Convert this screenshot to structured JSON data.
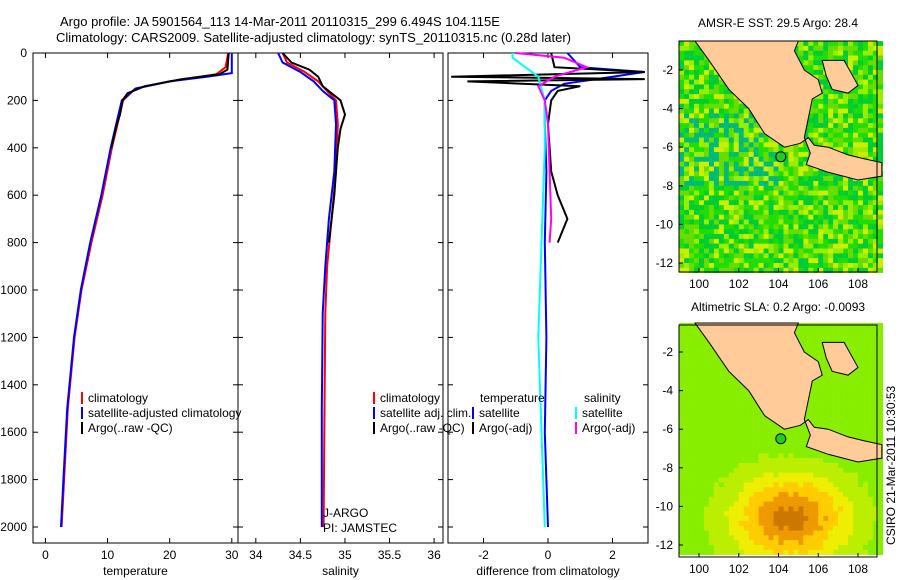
{
  "title_line1": "Argo profile: JA 5901564_113 14-Mar-2011 20110315_299 6.494S 104.115E",
  "title_line2": "Climatology: CARS2009. Satellite-adjusted climatology: synTS_20110315.nc (0.28d later)",
  "credit": "CSIRO 21-Mar-2011 10:30:53",
  "chart_data": [
    {
      "type": "line",
      "xlabel": "temperature",
      "xlim": [
        -2,
        31
      ],
      "ylim": [
        2050,
        0
      ],
      "xticks": [
        "0",
        "10",
        "20",
        "30"
      ],
      "xtick_values": [
        0,
        10,
        20,
        30
      ],
      "yticks": [
        "0",
        "200",
        "400",
        "600",
        "800",
        "1000",
        "1200",
        "1400",
        "1600",
        "1800",
        "2000"
      ],
      "legend": [
        "climatology",
        "satellite-adjusted climatology",
        "Argo(..raw -QC)"
      ],
      "series": [
        {
          "name": "climatology",
          "color": "#ff0000",
          "pressure": [
            0,
            60,
            90,
            120,
            150,
            200,
            300,
            400,
            600,
            800,
            1000,
            1200,
            1500,
            1800,
            2000
          ],
          "values": [
            29.4,
            29.0,
            27.5,
            20,
            14.5,
            12.5,
            11.6,
            10.7,
            9.2,
            7.4,
            5.8,
            4.7,
            3.6,
            3.0,
            2.6
          ]
        },
        {
          "name": "satellite-adjusted climatology",
          "color": "#0000ff",
          "pressure": [
            0,
            85,
            100,
            120,
            150,
            200,
            300,
            400,
            600,
            800,
            1000,
            1200,
            1500,
            1800,
            2000
          ],
          "values": [
            30.0,
            30.0,
            26,
            20,
            14.5,
            12.3,
            11.4,
            10.5,
            9.0,
            7.2,
            5.7,
            4.6,
            3.5,
            2.9,
            2.5
          ]
        },
        {
          "name": "Argo(..raw -QC)",
          "color": "#000000",
          "pressure": [
            0,
            70,
            90,
            110,
            140,
            170,
            200,
            260,
            300,
            400
          ],
          "values": [
            29.5,
            29.3,
            28,
            22,
            16,
            13.2,
            12.4,
            12,
            11.5,
            10.6
          ]
        }
      ]
    },
    {
      "type": "line",
      "xlabel": "salinity",
      "xlim": [
        33.8,
        36.1
      ],
      "ylim": [
        2050,
        0
      ],
      "xticks": [
        "34",
        "34.5",
        "35",
        "35.5",
        "36"
      ],
      "xtick_values": [
        34,
        34.5,
        35,
        35.5,
        36
      ],
      "legend": [
        "climatology",
        "satellite adj. clim.",
        "Argo(..raw -QC)"
      ],
      "annotation": [
        "J-ARGO",
        "PI: JAMSTEC"
      ],
      "series": [
        {
          "name": "climatology",
          "color": "#ff0000",
          "pressure": [
            0,
            40,
            80,
            120,
            160,
            200,
            300,
            500,
            700,
            900,
            1100,
            1500,
            2000
          ],
          "values": [
            34.3,
            34.35,
            34.55,
            34.7,
            34.8,
            34.9,
            34.92,
            34.9,
            34.85,
            34.8,
            34.78,
            34.77,
            34.76
          ]
        },
        {
          "name": "satellite adj. clim.",
          "color": "#0000ff",
          "pressure": [
            0,
            40,
            80,
            120,
            160,
            200,
            300,
            500,
            700,
            900,
            1100,
            1500,
            2000
          ],
          "values": [
            34.25,
            34.3,
            34.5,
            34.65,
            34.75,
            34.88,
            34.9,
            34.88,
            34.82,
            34.78,
            34.75,
            34.74,
            34.74
          ]
        },
        {
          "name": "Argo(..raw -QC)",
          "color": "#000000",
          "pressure": [
            0,
            40,
            70,
            100,
            140,
            170,
            200,
            260,
            320,
            400,
            500,
            600,
            700,
            800
          ],
          "values": [
            34.3,
            34.4,
            34.6,
            34.7,
            34.75,
            34.85,
            34.95,
            35.0,
            34.95,
            34.92,
            34.9,
            34.88,
            34.85,
            34.82
          ]
        }
      ]
    },
    {
      "type": "line",
      "xlabel": "difference from climatology",
      "xlim": [
        -3.1,
        3.1
      ],
      "ylim": [
        2050,
        0
      ],
      "xticks": [
        "-2",
        "0",
        "2"
      ],
      "xtick_values": [
        -2,
        0,
        2
      ],
      "legend_temperature": {
        "heading": "temperature",
        "items": [
          "satellite",
          "Argo(-adj)"
        ]
      },
      "legend_salinity": {
        "heading": "salinity",
        "items": [
          "satellite",
          "Argo(-adj)"
        ]
      },
      "series": [
        {
          "name": "temperature satellite",
          "color": "#0000ff",
          "pressure": [
            0,
            60,
            80,
            100,
            130,
            160,
            200,
            300,
            500,
            800,
            1200,
            1600,
            2000
          ],
          "values": [
            0.6,
            1.0,
            3.0,
            2.0,
            0.5,
            0.1,
            -0.1,
            -0.1,
            -0.05,
            -0.1,
            -0.05,
            -0.1,
            0
          ]
        },
        {
          "name": "temperature Argo(-adj)",
          "color": "#000000",
          "pressure": [
            0,
            60,
            80,
            100,
            110,
            120,
            140,
            160,
            200,
            300,
            500,
            600,
            700,
            800
          ],
          "values": [
            0.1,
            0.2,
            3.0,
            -3.0,
            3.0,
            -2.5,
            1.0,
            0.3,
            0.1,
            0.0,
            0.1,
            0.3,
            0.6,
            0.3
          ]
        },
        {
          "name": "salinity satellite",
          "color": "#00ffff",
          "pressure": [
            0,
            20,
            100,
            200,
            400,
            800,
            1200,
            1600,
            2000
          ],
          "values": [
            -1.1,
            -1.1,
            -0.3,
            -0.1,
            -0.1,
            -0.2,
            -0.3,
            -0.2,
            -0.1
          ]
        },
        {
          "name": "salinity Argo(-adj)",
          "color": "#ff00ff",
          "pressure": [
            0,
            20,
            60,
            100,
            140,
            200,
            300,
            500,
            700,
            800
          ],
          "values": [
            -1.0,
            0.5,
            1.2,
            0.2,
            -0.3,
            -0.1,
            0.0,
            0.05,
            0.1,
            0.05
          ]
        }
      ]
    },
    {
      "type": "heatmap",
      "title": "AMSR-E SST: 29.5 Argo: 28.4",
      "sat_value": 29.5,
      "argo_value": 28.4,
      "xticks": [
        "100",
        "102",
        "104",
        "106",
        "108"
      ],
      "xtick_values": [
        100,
        102,
        104,
        106,
        108
      ],
      "yticks": [
        "-2",
        "-4",
        "-6",
        "-8",
        "-10",
        "-12"
      ],
      "ytick_values": [
        -2,
        -4,
        -6,
        -8,
        -10,
        -12
      ],
      "marker": {
        "lon": 104.115,
        "lat": -6.494
      }
    },
    {
      "type": "heatmap",
      "title": "Altimetric SLA: 0.2 Argo: -0.0093",
      "sat_value": 0.2,
      "argo_value": -0.0093,
      "xticks": [
        "100",
        "102",
        "104",
        "106",
        "108"
      ],
      "xtick_values": [
        100,
        102,
        104,
        106,
        108
      ],
      "yticks": [
        "-2",
        "-4",
        "-6",
        "-8",
        "-10",
        "-12"
      ],
      "ytick_values": [
        -2,
        -4,
        -6,
        -8,
        -10,
        -12
      ],
      "marker": {
        "lon": 104.115,
        "lat": -6.494
      }
    }
  ]
}
